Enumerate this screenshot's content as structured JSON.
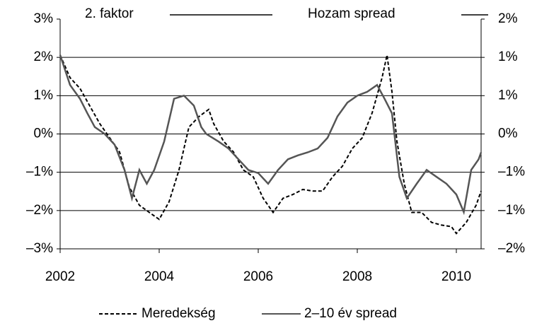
{
  "chart_data": {
    "type": "line",
    "y_label": "2. faktor",
    "y2_label": "Hozam spread",
    "xlim": [
      2002,
      2010.5
    ],
    "xticks": [
      2002,
      2004,
      2006,
      2008,
      2010
    ],
    "ylim": [
      -3,
      3
    ],
    "yticks": [
      {
        "value": 3,
        "label": "3%"
      },
      {
        "value": 2,
        "label": "2%"
      },
      {
        "value": 1,
        "label": "1%"
      },
      {
        "value": 0,
        "label": "0%"
      },
      {
        "value": -1,
        "label": "–1%"
      },
      {
        "value": -2,
        "label": "–2%"
      },
      {
        "value": -3,
        "label": "–3%"
      }
    ],
    "y2lim": [
      -1.5,
      1.5
    ],
    "y2ticks": [
      {
        "value": 1.5,
        "label": "2%"
      },
      {
        "value": 1,
        "label": "1%"
      },
      {
        "value": 0.5,
        "label": "1%"
      },
      {
        "value": 0,
        "label": "0%"
      },
      {
        "value": -0.5,
        "label": "–1%"
      },
      {
        "value": -1,
        "label": "–1%"
      },
      {
        "value": -1.5,
        "label": "–2%"
      }
    ],
    "grid": true,
    "legend": "bottom",
    "series": [
      {
        "name": "Meredekség",
        "color": "#000000",
        "dash": true,
        "axis": "y",
        "x": [
          2002.0,
          2002.2,
          2002.4,
          2002.6,
          2002.8,
          2003.0,
          2003.2,
          2003.4,
          2003.6,
          2003.8,
          2004.0,
          2004.2,
          2004.4,
          2004.6,
          2004.8,
          2005.0,
          2005.1,
          2005.3,
          2005.5,
          2005.7,
          2005.9,
          2006.1,
          2006.3,
          2006.5,
          2006.7,
          2006.9,
          2007.1,
          2007.3,
          2007.5,
          2007.7,
          2007.9,
          2008.1,
          2008.3,
          2008.5,
          2008.6,
          2008.7,
          2008.8,
          2008.95,
          2009.1,
          2009.3,
          2009.5,
          2009.7,
          2009.9,
          2010.0,
          2010.2,
          2010.4,
          2010.5
        ],
        "values": [
          2.06,
          1.47,
          1.19,
          0.73,
          0.27,
          -0.1,
          -0.47,
          -1.4,
          -1.86,
          -2.05,
          -2.23,
          -1.77,
          -0.94,
          0.18,
          0.45,
          0.64,
          0.27,
          -0.19,
          -0.47,
          -0.94,
          -1.12,
          -1.68,
          -2.05,
          -1.68,
          -1.58,
          -1.45,
          -1.49,
          -1.49,
          -1.12,
          -0.84,
          -0.38,
          -0.1,
          0.55,
          1.47,
          2.06,
          1.1,
          -0.19,
          -1.31,
          -2.05,
          -2.05,
          -2.31,
          -2.38,
          -2.42,
          -2.6,
          -2.31,
          -1.86,
          -1.49
        ]
      },
      {
        "name": "2–10 év spread",
        "color": "#555555",
        "dash": false,
        "axis": "y2",
        "x": [
          2002.0,
          2002.2,
          2002.4,
          2002.55,
          2002.7,
          2002.9,
          2003.1,
          2003.3,
          2003.45,
          2003.6,
          2003.75,
          2003.9,
          2004.1,
          2004.3,
          2004.5,
          2004.7,
          2004.85,
          2004.95,
          2005.2,
          2005.4,
          2005.6,
          2005.8,
          2006.0,
          2006.2,
          2006.4,
          2006.6,
          2006.8,
          2007.0,
          2007.2,
          2007.4,
          2007.6,
          2007.8,
          2008.0,
          2008.2,
          2008.4,
          2008.55,
          2008.7,
          2008.85,
          2009.0,
          2009.2,
          2009.4,
          2009.6,
          2009.8,
          2010.0,
          2010.15,
          2010.3,
          2010.45,
          2010.5
        ],
        "values": [
          1.03,
          0.64,
          0.46,
          0.27,
          0.09,
          0.0,
          -0.14,
          -0.47,
          -0.84,
          -0.47,
          -0.65,
          -0.47,
          -0.1,
          0.46,
          0.5,
          0.37,
          0.09,
          0.0,
          -0.1,
          -0.19,
          -0.33,
          -0.47,
          -0.51,
          -0.65,
          -0.47,
          -0.33,
          -0.28,
          -0.24,
          -0.19,
          -0.05,
          0.23,
          0.41,
          0.5,
          0.55,
          0.64,
          0.46,
          0.27,
          -0.56,
          -0.84,
          -0.65,
          -0.47,
          -0.56,
          -0.65,
          -0.79,
          -1.02,
          -0.47,
          -0.33,
          -0.24
        ]
      }
    ]
  }
}
